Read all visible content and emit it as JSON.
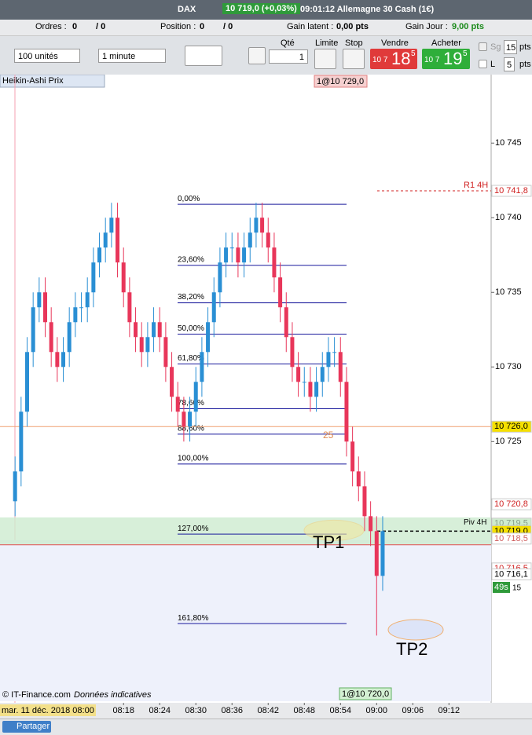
{
  "header": {
    "instrument": "DAX",
    "quote": "10 719,0 (+0,03%)",
    "info": "09:01:12 Allemagne 30 Cash (1€)"
  },
  "account": {
    "orders_label": "Ordres :",
    "orders": "0",
    "orders_total": "/ 0",
    "position_label": "Position :",
    "position": "0",
    "position_total": "/ 0",
    "latent_label": "Gain latent :",
    "latent": "0,00 pts",
    "day_label": "Gain Jour :",
    "day": "9,00 pts"
  },
  "toolbar": {
    "units": "100 unités",
    "period": "1 minute",
    "qty_label": "Qté",
    "qty": "1",
    "limit": "Limite",
    "stop": "Stop",
    "sell_label": "Vendre",
    "sell_prefix": "10 7",
    "sell_main": "18",
    "sell_sup": "5",
    "buy_label": "Acheter",
    "buy_prefix": "10 7",
    "buy_main": "19",
    "buy_sup": "5",
    "sg_label": "Sg",
    "sg": "15",
    "l_label": "L",
    "l": "5",
    "pts": "pts"
  },
  "chart": {
    "indicator": "Heikin-Ashi Prix",
    "top_tag": "1@10 729,0",
    "bottom_tag": "1@10 720,0",
    "copyright": "© IT-Finance.com",
    "disclaimer": "Données indicatives",
    "date_label": "mar. 11 déc. 2018 08:00",
    "countdown": "49s",
    "countdown_unit": "15",
    "ylim": [
      10707.6,
      10748.8
    ],
    "xlim": [
      "07:57:30",
      "09:19:00"
    ],
    "yticks": [
      {
        "value": 10745,
        "label": "10 745"
      },
      {
        "value": 10740,
        "label": "10 740"
      },
      {
        "value": 10735,
        "label": "10 735"
      },
      {
        "value": 10730,
        "label": "10 730"
      },
      {
        "value": 10725,
        "label": "10 725"
      }
    ],
    "xticks": [
      "08:18",
      "08:24",
      "08:30",
      "08:36",
      "08:42",
      "08:48",
      "08:54",
      "09:00",
      "09:06",
      "09:12"
    ],
    "up_color": "#2a8fd4",
    "down_color": "#e8365a",
    "fib_color": "#1a1a9c",
    "times": [
      "08:00",
      "08:01",
      "08:02",
      "08:03",
      "08:04",
      "08:05",
      "08:06",
      "08:07",
      "08:08",
      "08:09",
      "08:10",
      "08:11",
      "08:12",
      "08:13",
      "08:14",
      "08:15",
      "08:16",
      "08:17",
      "08:18",
      "08:19",
      "08:20",
      "08:21",
      "08:22",
      "08:23",
      "08:24",
      "08:25",
      "08:26",
      "08:27",
      "08:28",
      "08:29",
      "08:30",
      "08:31",
      "08:32",
      "08:33",
      "08:34",
      "08:35",
      "08:36",
      "08:37",
      "08:38",
      "08:39",
      "08:40",
      "08:41",
      "08:42",
      "08:43",
      "08:44",
      "08:45",
      "08:46",
      "08:47",
      "08:48",
      "08:49",
      "08:50",
      "08:51",
      "08:52",
      "08:53",
      "08:54",
      "08:55",
      "08:56",
      "08:57",
      "08:58",
      "08:59",
      "09:00",
      "09:01"
    ],
    "open": [
      10721,
      10723,
      10727,
      10731,
      10734,
      10735,
      10733,
      10731,
      10730,
      10731,
      10733,
      10734,
      10734,
      10735,
      10737,
      10738,
      10739,
      10740,
      10737,
      10735,
      10733,
      10732,
      10731,
      10732,
      10733,
      10732,
      10730,
      10728,
      10727,
      10726,
      10727,
      10729,
      10731,
      10733,
      10735,
      10737,
      10738,
      10738,
      10737,
      10738,
      10739,
      10740,
      10739,
      10738,
      10736,
      10734,
      10732,
      10730,
      10729,
      10729,
      10728,
      10729,
      10730,
      10731,
      10731,
      10729,
      10725,
      10723,
      10722,
      10720,
      10719,
      10716
    ],
    "high": [
      10724,
      10728,
      10732,
      10735,
      10736,
      10736,
      10734,
      10732,
      10732,
      10734,
      10735,
      10735,
      10736,
      10738,
      10739,
      10740,
      10741,
      10741,
      10738,
      10736,
      10734,
      10733,
      10733,
      10734,
      10734,
      10733,
      10731,
      10729,
      10728,
      10728,
      10730,
      10732,
      10734,
      10736,
      10738,
      10739,
      10739,
      10739,
      10739,
      10740,
      10741,
      10741,
      10740,
      10739,
      10737,
      10735,
      10733,
      10731,
      10730,
      10730,
      10730,
      10731,
      10732,
      10732,
      10732,
      10730,
      10726,
      10724,
      10723,
      10721,
      10720,
      10720
    ],
    "low": [
      10720,
      10722,
      10726,
      10730,
      10733,
      10732,
      10730,
      10729,
      10729,
      10730,
      10732,
      10733,
      10733,
      10734,
      10736,
      10737,
      10738,
      10736,
      10734,
      10732,
      10731,
      10730,
      10730,
      10731,
      10731,
      10729,
      10727,
      10726,
      10725,
      10725,
      10726,
      10728,
      10730,
      10732,
      10734,
      10736,
      10737,
      10736,
      10736,
      10737,
      10738,
      10738,
      10737,
      10735,
      10733,
      10731,
      10729,
      10728,
      10728,
      10727,
      10727,
      10728,
      10729,
      10730,
      10728,
      10724,
      10722,
      10721,
      10719,
      10718,
      10712,
      10715
    ],
    "close": [
      10723,
      10727,
      10731,
      10734,
      10735,
      10733,
      10731,
      10730,
      10731,
      10733,
      10734,
      10734,
      10735,
      10737,
      10738,
      10739,
      10740,
      10737,
      10735,
      10733,
      10732,
      10731,
      10732,
      10733,
      10732,
      10730,
      10728,
      10727,
      10726,
      10727,
      10729,
      10731,
      10733,
      10735,
      10737,
      10738,
      10738,
      10737,
      10738,
      10739,
      10740,
      10739,
      10738,
      10736,
      10734,
      10732,
      10730,
      10729,
      10729,
      10728,
      10729,
      10730,
      10731,
      10731,
      10729,
      10725,
      10723,
      10722,
      10720,
      10719,
      10716,
      10719
    ],
    "fib": [
      {
        "label": "0,00%",
        "price": 10740.9
      },
      {
        "label": "23,60%",
        "price": 10736.8
      },
      {
        "label": "38,20%",
        "price": 10734.3
      },
      {
        "label": "50,00%",
        "price": 10732.2
      },
      {
        "label": "61,80%",
        "price": 10730.2
      },
      {
        "label": "78,60%",
        "price": 10727.2
      },
      {
        "label": "88,60%",
        "price": 10725.5
      },
      {
        "label": "100,00%",
        "price": 10723.5
      },
      {
        "label": "127,00%",
        "price": 10718.8
      },
      {
        "label": "161,80%",
        "price": 10712.8
      }
    ],
    "price_tags": [
      {
        "label": "10 741,8",
        "price": 10741.8,
        "bg": "#ffffff",
        "fg": "#d02020"
      },
      {
        "label": "10 726,0",
        "price": 10726,
        "bg": "#f5e000",
        "fg": "#000000"
      },
      {
        "label": "10 720,8",
        "price": 10720.8,
        "bg": "#ffffff",
        "fg": "#d02020"
      },
      {
        "label": "10 719,5",
        "price": 10719.5,
        "bg": "#cfeccf",
        "fg": "#8aa08a"
      },
      {
        "label": "10 719,0",
        "price": 10719,
        "bg": "#f5e000",
        "fg": "#000000"
      },
      {
        "label": "10 718,5",
        "price": 10718.5,
        "bg": "#ffffff",
        "fg": "#d06060"
      },
      {
        "label": "10 716,5",
        "price": 10716.5,
        "bg": "#ffffff",
        "fg": "#d02020"
      },
      {
        "label": "10 716,1",
        "price": 10716.1,
        "bg": "#ffffff",
        "fg": "#000000"
      }
    ],
    "r1_label": "R1 4H",
    "r1_price": 10741.8,
    "piv_label": "Piv 4H",
    "piv_price": 10719,
    "band_low": 10718.4,
    "band_high": 10719.6,
    "tp1": "TP1",
    "tp2": "TP2",
    "count": "25"
  }
}
